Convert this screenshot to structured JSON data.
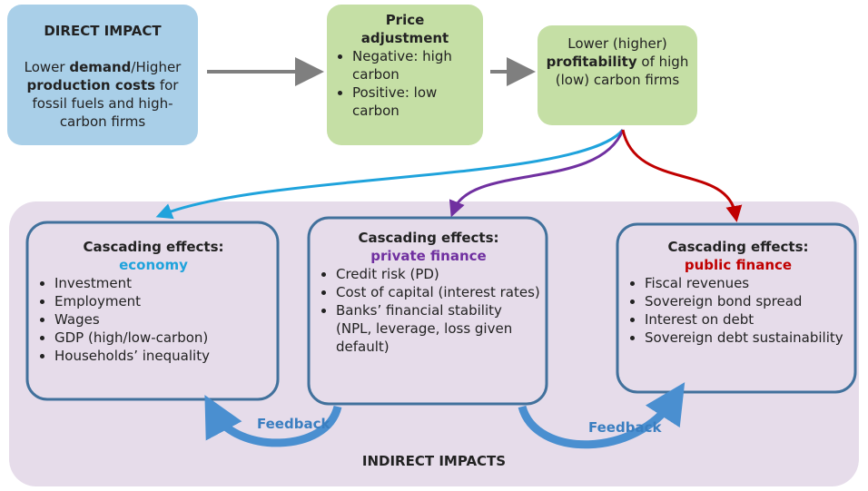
{
  "direct_impact": {
    "title": "DIRECT IMPACT",
    "text": [
      "Lower ",
      "demand",
      "/Higher ",
      "production costs",
      " for fossil fuels and high-carbon firms"
    ]
  },
  "price_adjustment": {
    "title": "Price adjustment",
    "items": [
      "Negative: high carbon",
      "Positive: low carbon"
    ]
  },
  "profitability": {
    "text": [
      "Lower (higher) ",
      "profitability",
      " of high (low) carbon firms"
    ]
  },
  "cascades": [
    {
      "title": "Cascading effects:",
      "subtitle": "economy",
      "items": [
        "Investment",
        "Employment",
        "Wages",
        "GDP (high/low-carbon)",
        "Households’ inequality"
      ]
    },
    {
      "title": "Cascading effects:",
      "subtitle": "private finance",
      "items": [
        "Credit risk (PD)",
        "Cost of capital (interest rates)",
        "Banks’ financial stability (NPL, leverage, loss given default)"
      ]
    },
    {
      "title": "Cascading effects:",
      "subtitle": "public finance",
      "items": [
        "Fiscal revenues",
        "Sovereign bond spread",
        "Interest on debt",
        "Sovereign debt sustainability"
      ]
    }
  ],
  "feedback": [
    "Feedback",
    "Feedback"
  ],
  "footer": "INDIRECT IMPACTS"
}
